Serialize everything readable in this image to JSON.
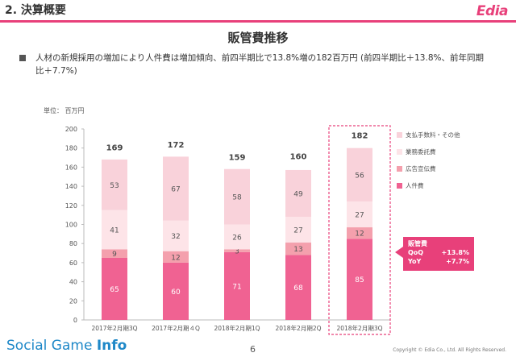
{
  "header": {
    "section_title": "2. 決算概要",
    "logo": "Edia"
  },
  "slide_title": "販管費推移",
  "bullet": "人材の新規採用の増加により人件費は増加傾向、前四半期比で13.8%増の182百万円 (前四半期比＋13.8%、前年同期比＋7.7%)",
  "unit_label": "単位： 百万円",
  "callout": {
    "title": "販管費",
    "qoq_label": "QoQ",
    "qoq_value": "+13.8%",
    "yoy_label": "YoY",
    "yoy_value": "+7.7%"
  },
  "footer": {
    "brand_part1": "Social Game ",
    "brand_part2": "Info",
    "page": "6",
    "copyright": "Copyright © Edia Co., Ltd. All Rights Reserved."
  },
  "colors": {
    "accent": "#e8407a",
    "personnel": "#f06292",
    "advertising": "#f4a0ad",
    "outsourcing": "#fde4e8",
    "fees_other": "#f9d2da"
  },
  "chart_data": {
    "type": "bar",
    "stacked": true,
    "categories": [
      "2017年2月期3Q",
      "2017年2月期４Q",
      "2018年2月期1Q",
      "2018年2月期2Q",
      "2018年2月期3Q"
    ],
    "series": [
      {
        "name": "人件費",
        "values": [
          65,
          60,
          71,
          68,
          85
        ]
      },
      {
        "name": "広告宣伝費",
        "values": [
          9,
          12,
          3,
          13,
          12
        ]
      },
      {
        "name": "業務委託費",
        "values": [
          41,
          32,
          26,
          27,
          27
        ]
      },
      {
        "name": "支払手数料・その他",
        "values": [
          53,
          67,
          58,
          49,
          56
        ]
      }
    ],
    "totals": [
      169,
      172,
      159,
      160,
      182
    ],
    "ylim": [
      0,
      200
    ],
    "yticks": [
      0,
      20,
      40,
      60,
      80,
      100,
      120,
      140,
      160,
      180,
      200
    ],
    "highlight_index": 4,
    "legend_position": "right"
  }
}
